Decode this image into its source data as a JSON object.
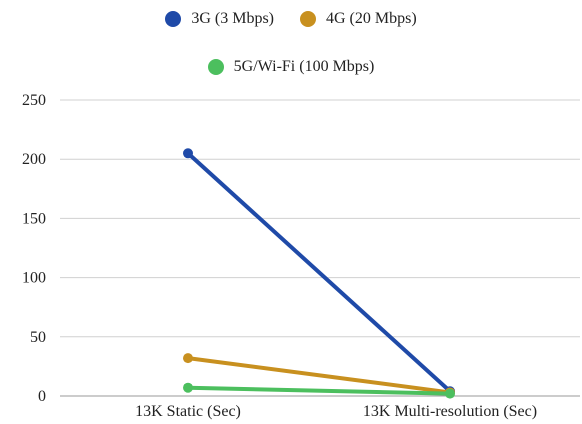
{
  "chart_data": {
    "type": "line",
    "title": "",
    "xlabel": "",
    "ylabel": "",
    "categories": [
      "13K Static (Sec)",
      "13K Multi-resolution (Sec)"
    ],
    "ylim": [
      0,
      250
    ],
    "yticks": [
      0,
      50,
      100,
      150,
      200,
      250
    ],
    "grid": true,
    "legend_position": "top",
    "series": [
      {
        "name": "3G (3 Mbps)",
        "color": "#1f4aa8",
        "values": [
          205,
          4
        ]
      },
      {
        "name": "4G (20 Mbps)",
        "color": "#c8901f",
        "values": [
          32,
          3
        ]
      },
      {
        "name": "5G/Wi-Fi (100 Mbps)",
        "color": "#4cbf5e",
        "values": [
          7,
          2
        ]
      }
    ]
  }
}
